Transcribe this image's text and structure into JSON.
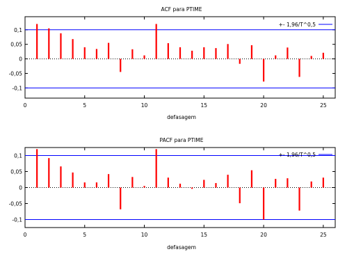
{
  "chart_data": [
    {
      "type": "bar",
      "title": "ACF para PTIME",
      "xlabel": "defasagem",
      "ylabel": "",
      "x": [
        1,
        2,
        3,
        4,
        5,
        6,
        7,
        8,
        9,
        10,
        11,
        12,
        13,
        14,
        15,
        16,
        17,
        18,
        19,
        20,
        21,
        22,
        23,
        24,
        25
      ],
      "values": [
        0.12,
        0.105,
        0.088,
        0.068,
        0.04,
        0.034,
        0.055,
        -0.045,
        0.033,
        0.012,
        0.12,
        0.054,
        0.04,
        0.028,
        0.04,
        0.037,
        0.051,
        -0.017,
        0.047,
        -0.078,
        0.012,
        0.039,
        -0.062,
        0.01,
        0.021
      ],
      "xlim": [
        0,
        26
      ],
      "ylim": [
        -0.135,
        0.145
      ],
      "xticks": [
        "0",
        "5",
        "10",
        "15",
        "20",
        "25"
      ],
      "yticks": [
        "0,1",
        "0,05",
        "0",
        "-0,05",
        "-0,1"
      ],
      "ytick_values": [
        0.1,
        0.05,
        0,
        -0.05,
        -0.1
      ],
      "bands": {
        "name": "+- 1,96/T^0,5",
        "value": 0.1
      },
      "legend_position": "top-right",
      "colors": {
        "bars": "#ff0000",
        "bands": "#0000ff",
        "zero": "#000000"
      }
    },
    {
      "type": "bar",
      "title": "PACF para PTIME",
      "xlabel": "defasagem",
      "ylabel": "",
      "x": [
        1,
        2,
        3,
        4,
        5,
        6,
        7,
        8,
        9,
        10,
        11,
        12,
        13,
        14,
        15,
        16,
        17,
        18,
        19,
        20,
        21,
        22,
        23,
        24,
        25
      ],
      "values": [
        0.12,
        0.092,
        0.066,
        0.047,
        0.016,
        0.016,
        0.042,
        -0.068,
        0.033,
        0.005,
        0.12,
        0.031,
        0.012,
        -0.004,
        0.024,
        0.014,
        0.04,
        -0.049,
        0.054,
        -0.1,
        0.027,
        0.029,
        -0.072,
        0.019,
        0.031
      ],
      "xlim": [
        0,
        26
      ],
      "ylim": [
        -0.125,
        0.125
      ],
      "xticks": [
        "0",
        "5",
        "10",
        "15",
        "20",
        "25"
      ],
      "yticks": [
        "0,1",
        "0,05",
        "0",
        "-0,05",
        "-0,1"
      ],
      "ytick_values": [
        0.1,
        0.05,
        0,
        -0.05,
        -0.1
      ],
      "bands": {
        "name": "+- 1,96/T^0,5",
        "value": 0.1
      },
      "legend_position": "top-right",
      "colors": {
        "bars": "#ff0000",
        "bands": "#0000ff",
        "zero": "#000000"
      }
    }
  ]
}
